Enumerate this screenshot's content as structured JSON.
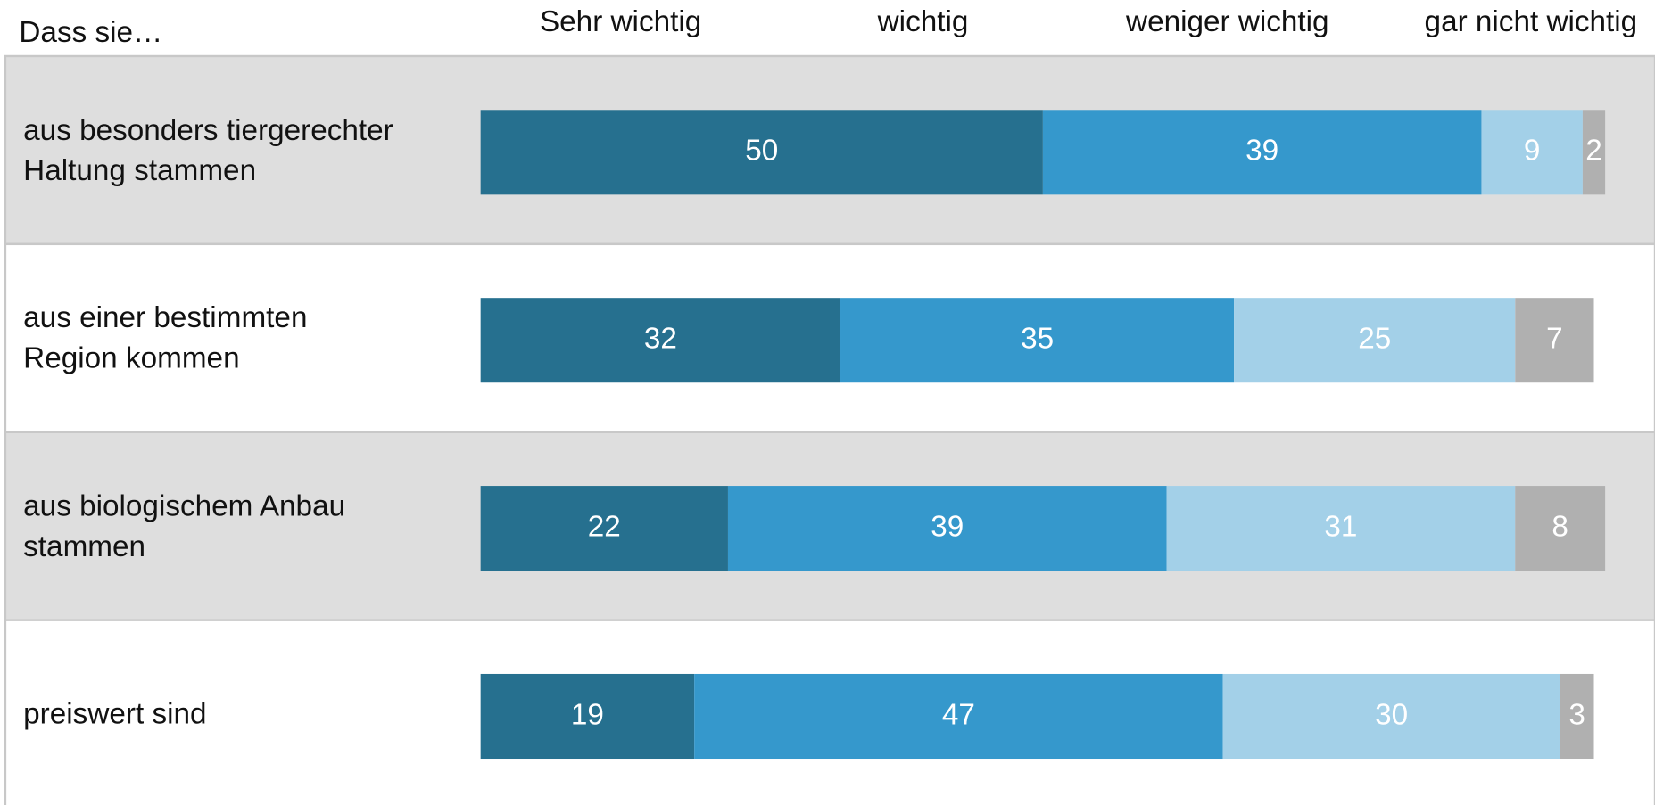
{
  "chart_data": {
    "type": "stacked-bar-horizontal",
    "header": "Dass sie…",
    "categories": [
      "aus besonders tiergerechter Haltung stammen",
      "aus einer bestimmten Region kommen",
      "aus biologischem Anbau stammen",
      "preiswert sind"
    ],
    "series": [
      {
        "name": "Sehr wichtig",
        "color": "#26708f",
        "values": [
          50,
          32,
          22,
          19
        ]
      },
      {
        "name": "wichtig",
        "color": "#3598cc",
        "values": [
          39,
          35,
          39,
          47
        ]
      },
      {
        "name": "weniger wichtig",
        "color": "#a3d0e8",
        "values": [
          9,
          25,
          31,
          30
        ]
      },
      {
        "name": "gar nicht wichtig",
        "color": "#b0b0b0",
        "values": [
          2,
          7,
          8,
          3
        ]
      }
    ],
    "xlim": [
      0,
      100
    ],
    "row_colors": [
      "#dedede",
      "#ffffff"
    ]
  }
}
